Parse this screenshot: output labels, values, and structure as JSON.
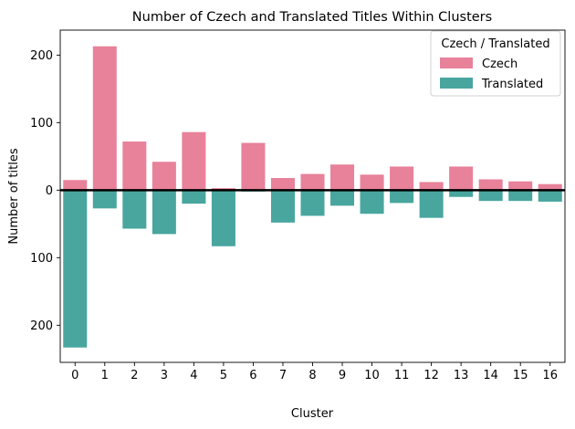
{
  "chart_data": {
    "type": "bar",
    "title": "Number of Czech and Translated Titles Within Clusters",
    "xlabel": "Cluster",
    "ylabel": "Number of titles",
    "categories": [
      "0",
      "1",
      "2",
      "3",
      "4",
      "5",
      "6",
      "7",
      "8",
      "9",
      "10",
      "11",
      "12",
      "13",
      "14",
      "15",
      "16"
    ],
    "series": [
      {
        "name": "Czech",
        "color": "#e8819a",
        "direction": "up",
        "values": [
          15,
          213,
          72,
          42,
          86,
          3,
          70,
          18,
          24,
          38,
          23,
          35,
          12,
          35,
          16,
          13,
          9
        ]
      },
      {
        "name": "Translated",
        "color": "#48a69f",
        "direction": "down",
        "values": [
          233,
          27,
          57,
          65,
          20,
          83,
          2,
          48,
          38,
          23,
          35,
          19,
          41,
          10,
          16,
          16,
          17
        ]
      }
    ],
    "ylim": [
      -255,
      237
    ],
    "yticks": [
      -200,
      -100,
      0,
      100,
      200
    ],
    "ytick_labels": [
      "200",
      "100",
      "0",
      "100",
      "200"
    ],
    "legend": {
      "title": "Czech / Translated",
      "position": "top-right"
    },
    "zero_line": true,
    "grid": false
  }
}
